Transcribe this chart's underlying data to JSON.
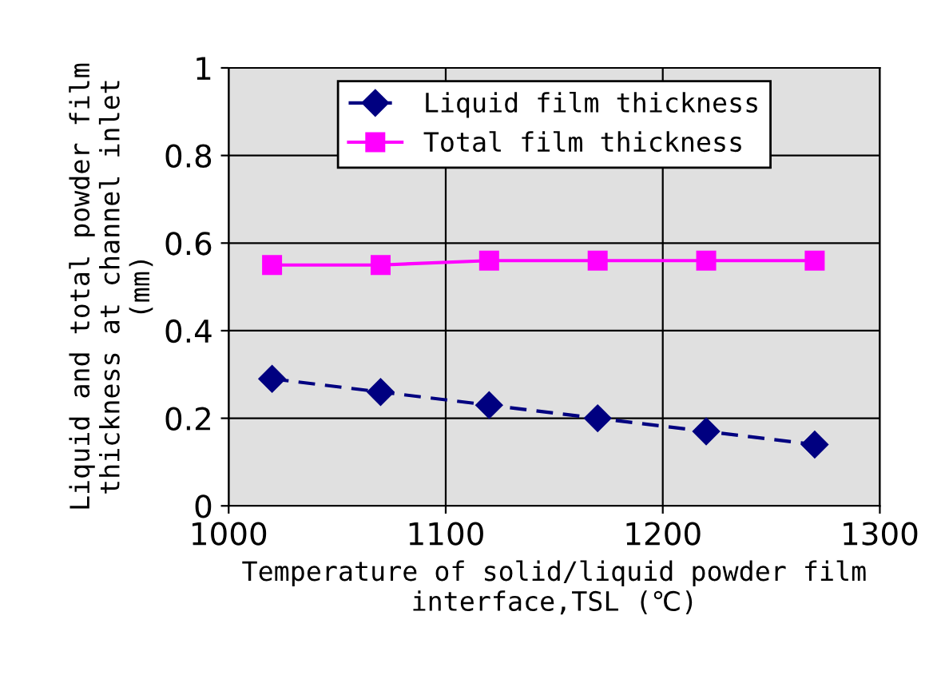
{
  "chart_data": {
    "type": "line",
    "xlabel": "Temperature of solid/liquid powder film\ninterface,TSL (℃)",
    "ylabel": "Liquid and total powder film\nthickness at channel inlet\n(mm)",
    "x": [
      1020,
      1070,
      1120,
      1170,
      1220,
      1270
    ],
    "series": [
      {
        "name": "Liquid film thickness",
        "color": "#000080",
        "values": [
          0.29,
          0.26,
          0.23,
          0.2,
          0.17,
          0.14
        ],
        "marker": "diamond",
        "line_style": "dashed"
      },
      {
        "name": "Total film thickness",
        "color": "#ff00ff",
        "values": [
          0.55,
          0.55,
          0.56,
          0.56,
          0.56,
          0.56
        ],
        "marker": "square",
        "line_style": "solid"
      }
    ],
    "xlim": [
      1000,
      1300
    ],
    "xticks": [
      1000,
      1100,
      1200,
      1300
    ],
    "ylim": [
      0,
      1
    ],
    "yticks": [
      0,
      0.2,
      0.4,
      0.6,
      0.8,
      1
    ],
    "grid": true,
    "legend": "top"
  }
}
